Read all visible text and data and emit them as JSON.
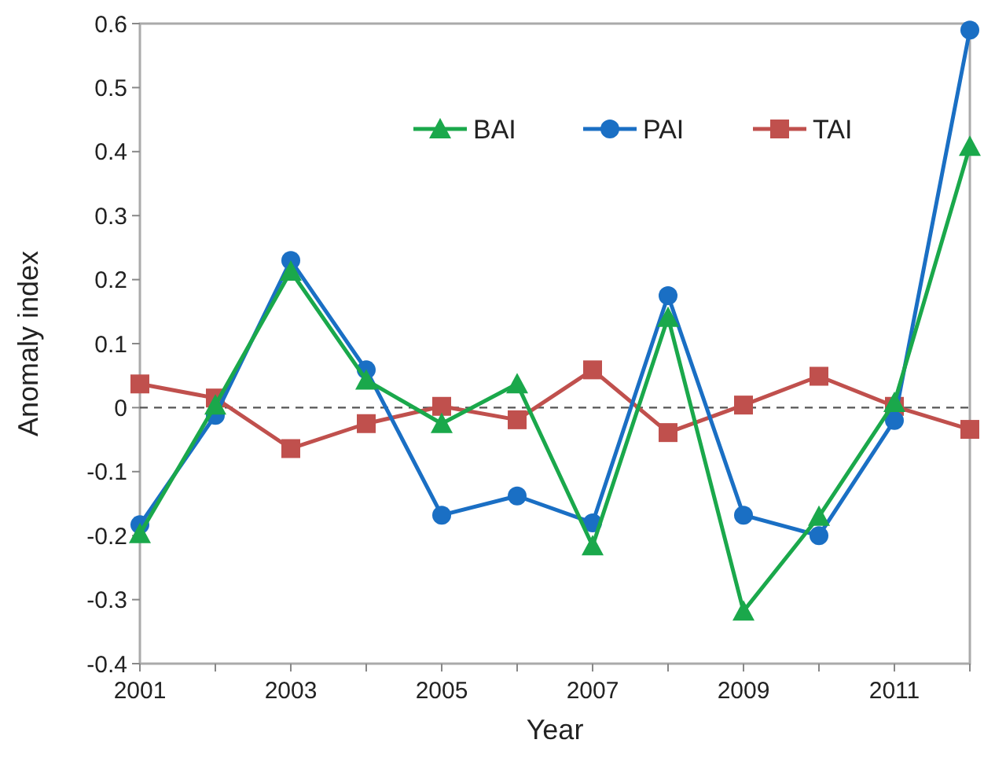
{
  "chart_data": {
    "type": "line",
    "xlabel": "Year",
    "ylabel": "Anomaly index",
    "x": [
      2001,
      2002,
      2003,
      2004,
      2005,
      2006,
      2007,
      2008,
      2009,
      2010,
      2011,
      2012
    ],
    "series": [
      {
        "name": "BAI",
        "color": "#1aa84b",
        "marker": "triangle",
        "values": [
          -0.197,
          0.004,
          0.213,
          0.043,
          -0.025,
          0.037,
          -0.216,
          0.141,
          -0.318,
          -0.17,
          0.008,
          0.408
        ]
      },
      {
        "name": "PAI",
        "color": "#1a6fc4",
        "marker": "circle",
        "values": [
          -0.183,
          -0.012,
          0.23,
          0.059,
          -0.168,
          -0.138,
          -0.18,
          0.175,
          -0.168,
          -0.2,
          -0.02,
          0.59
        ]
      },
      {
        "name": "TAI",
        "color": "#c0504d",
        "marker": "square",
        "values": [
          0.037,
          0.015,
          -0.064,
          -0.025,
          0.002,
          -0.019,
          0.059,
          -0.039,
          0.004,
          0.049,
          0.002,
          -0.034
        ]
      }
    ],
    "xlim": [
      2001,
      2012
    ],
    "xticks": [
      2001,
      {
        "value": 2002,
        "label": null
      },
      2003,
      {
        "value": 2004,
        "label": null
      },
      2005,
      {
        "value": 2006,
        "label": null
      },
      2007,
      {
        "value": 2008,
        "label": null
      },
      2009,
      {
        "value": 2010,
        "label": null
      },
      2011,
      {
        "value": 2012,
        "label": null
      }
    ],
    "ylim": [
      -0.4,
      0.6
    ],
    "yticks": [
      -0.4,
      -0.3,
      -0.2,
      -0.1,
      0,
      0.1,
      0.2,
      0.3,
      0.4,
      0.5,
      0.6
    ],
    "ref_lines": [
      {
        "axis": "y",
        "value": 0,
        "label": null,
        "color": "#555555",
        "line_style": "dashed"
      }
    ],
    "grid": false,
    "legend": "top",
    "line_style": "solid"
  }
}
